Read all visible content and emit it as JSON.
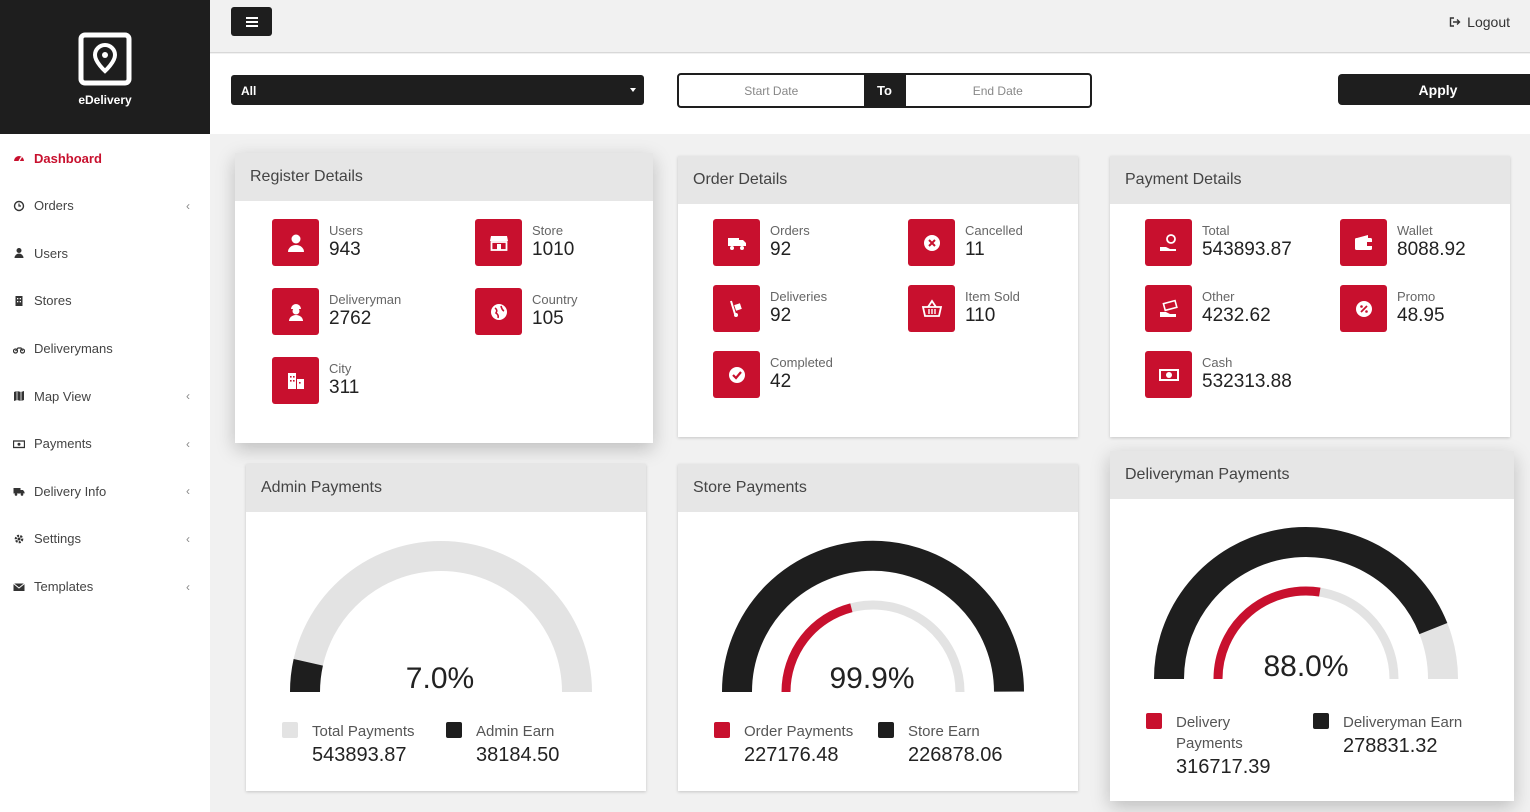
{
  "app": {
    "brand": "eDelivery"
  },
  "sidebar": {
    "items": [
      {
        "label": "Dashboard",
        "icon": "dashboard-icon",
        "active": true,
        "submenu": false
      },
      {
        "label": "Orders",
        "icon": "history-icon",
        "submenu": true
      },
      {
        "label": "Users",
        "icon": "user-icon",
        "submenu": false
      },
      {
        "label": "Stores",
        "icon": "building-icon",
        "submenu": false
      },
      {
        "label": "Deliverymans",
        "icon": "motorcycle-icon",
        "submenu": false
      },
      {
        "label": "Map View",
        "icon": "map-icon",
        "submenu": true
      },
      {
        "label": "Payments",
        "icon": "money-icon",
        "submenu": true
      },
      {
        "label": "Delivery Info",
        "icon": "truck-icon",
        "submenu": true
      },
      {
        "label": "Settings",
        "icon": "gear-icon",
        "submenu": true
      },
      {
        "label": "Templates",
        "icon": "envelope-icon",
        "submenu": true
      }
    ]
  },
  "topbar": {
    "logout_label": "Logout"
  },
  "filters": {
    "select_value": "All",
    "start_placeholder": "Start Date",
    "to_label": "To",
    "end_placeholder": "End Date",
    "apply_label": "Apply"
  },
  "register": {
    "title": "Register Details",
    "stats": [
      {
        "label": "Users",
        "value": "943",
        "icon": "user-icon"
      },
      {
        "label": "Store",
        "value": "1010",
        "icon": "store-icon"
      },
      {
        "label": "Deliveryman",
        "value": "2762",
        "icon": "deliveryman-icon"
      },
      {
        "label": "Country",
        "value": "105",
        "icon": "globe-icon"
      },
      {
        "label": "City",
        "value": "311",
        "icon": "city-icon"
      }
    ]
  },
  "orders": {
    "title": "Order Details",
    "stats": [
      {
        "label": "Orders",
        "value": "92",
        "icon": "truck-icon"
      },
      {
        "label": "Cancelled",
        "value": "11",
        "icon": "cancel-icon"
      },
      {
        "label": "Deliveries",
        "value": "92",
        "icon": "dolly-icon"
      },
      {
        "label": "Item Sold",
        "value": "110",
        "icon": "basket-icon"
      },
      {
        "label": "Completed",
        "value": "42",
        "icon": "check-icon"
      }
    ]
  },
  "payments": {
    "title": "Payment Details",
    "stats": [
      {
        "label": "Total",
        "value": "543893.87",
        "icon": "hand-coin-icon"
      },
      {
        "label": "Wallet",
        "value": "8088.92",
        "icon": "wallet-icon"
      },
      {
        "label": "Other",
        "value": "4232.62",
        "icon": "hand-money-icon"
      },
      {
        "label": "Promo",
        "value": "48.95",
        "icon": "percent-icon"
      },
      {
        "label": "Cash",
        "value": "532313.88",
        "icon": "cash-icon"
      }
    ]
  },
  "admin_payments": {
    "title": "Admin Payments",
    "percent_label": "7.0%",
    "percent": 7.0,
    "legend": [
      {
        "label": "Total Payments",
        "value": "543893.87",
        "color": "#e3e3e3"
      },
      {
        "label": "Admin Earn",
        "value": "38184.50",
        "color": "#1e1e1e"
      }
    ]
  },
  "store_payments": {
    "title": "Store Payments",
    "percent_label": "99.9%",
    "percent": 99.9,
    "inner_fraction": 0.42,
    "legend": [
      {
        "label": "Order Payments",
        "value": "227176.48",
        "color": "#c8102e"
      },
      {
        "label": "Store Earn",
        "value": "226878.06",
        "color": "#1e1e1e"
      }
    ]
  },
  "deliveryman_payments": {
    "title": "Deliveryman Payments",
    "percent_label": "88.0%",
    "percent": 88.0,
    "inner_fraction": 0.55,
    "legend": [
      {
        "label": "Delivery Payments",
        "value": "316717.39",
        "color": "#c8102e"
      },
      {
        "label": "Deliveryman Earn",
        "value": "278831.32",
        "color": "#1e1e1e"
      }
    ]
  },
  "colors": {
    "accent": "#c8102e",
    "dark": "#1e1e1e",
    "track": "#e3e3e3"
  }
}
